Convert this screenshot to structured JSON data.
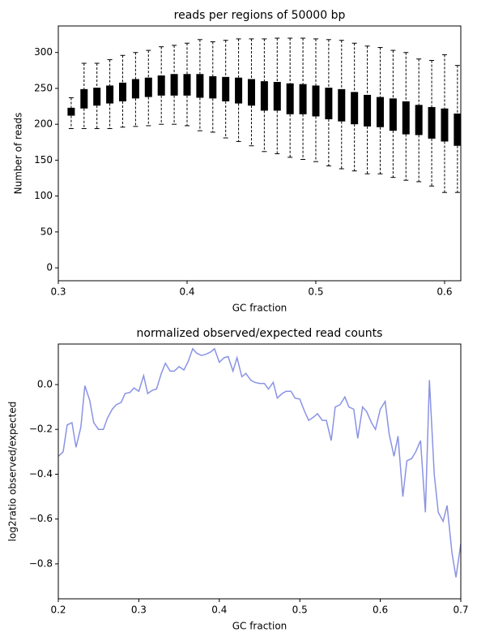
{
  "chart_data": [
    {
      "type": "box",
      "title": "reads per regions of 50000 bp",
      "xlabel": "GC fraction",
      "ylabel": "Number of reads",
      "x": [
        0.31,
        0.32,
        0.33,
        0.34,
        0.35,
        0.36,
        0.37,
        0.38,
        0.39,
        0.4,
        0.41,
        0.42,
        0.43,
        0.44,
        0.45,
        0.46,
        0.47,
        0.48,
        0.49,
        0.5,
        0.51,
        0.52,
        0.53,
        0.54,
        0.55,
        0.56,
        0.57,
        0.58,
        0.59,
        0.6,
        0.61
      ],
      "whisker_high": [
        237,
        285,
        285,
        290,
        296,
        300,
        303,
        308,
        310,
        313,
        318,
        315,
        317,
        319,
        319,
        319,
        320,
        320,
        320,
        319,
        318,
        317,
        313,
        309,
        307,
        303,
        300,
        291,
        289,
        297,
        282
      ],
      "q3": [
        223,
        249,
        251,
        254,
        258,
        263,
        265,
        268,
        270,
        270,
        270,
        267,
        266,
        265,
        263,
        260,
        259,
        257,
        256,
        254,
        251,
        249,
        245,
        241,
        238,
        236,
        232,
        227,
        224,
        222,
        215
      ],
      "q1": [
        212,
        222,
        226,
        229,
        232,
        236,
        238,
        240,
        240,
        240,
        237,
        236,
        232,
        229,
        226,
        219,
        219,
        214,
        214,
        211,
        207,
        204,
        200,
        197,
        196,
        191,
        186,
        185,
        180,
        176,
        170
      ],
      "whisker_low": [
        194,
        194,
        194,
        194,
        196,
        197,
        198,
        200,
        200,
        198,
        191,
        189,
        181,
        176,
        170,
        162,
        159,
        154,
        151,
        148,
        142,
        138,
        135,
        131,
        131,
        126,
        122,
        120,
        114,
        105,
        105
      ],
      "color": "#000000",
      "xlim": [
        0.3,
        0.6126
      ],
      "xticks": [
        0.3,
        0.4,
        0.5,
        0.6
      ],
      "ylim": [
        -18,
        337
      ],
      "yticks": [
        0,
        50,
        100,
        150,
        200,
        250,
        300
      ]
    },
    {
      "type": "line",
      "title": "normalized observed/expected read counts",
      "xlabel": "GC fraction",
      "ylabel": "log2ratio observed/expected",
      "x": [
        0.2,
        0.206,
        0.211,
        0.217,
        0.222,
        0.228,
        0.233,
        0.239,
        0.244,
        0.25,
        0.256,
        0.261,
        0.267,
        0.272,
        0.278,
        0.283,
        0.289,
        0.294,
        0.3,
        0.306,
        0.311,
        0.317,
        0.322,
        0.328,
        0.333,
        0.339,
        0.344,
        0.35,
        0.356,
        0.361,
        0.367,
        0.372,
        0.378,
        0.383,
        0.389,
        0.394,
        0.4,
        0.406,
        0.411,
        0.417,
        0.422,
        0.428,
        0.433,
        0.439,
        0.444,
        0.45,
        0.456,
        0.461,
        0.467,
        0.472,
        0.478,
        0.483,
        0.489,
        0.494,
        0.5,
        0.506,
        0.511,
        0.517,
        0.522,
        0.528,
        0.533,
        0.539,
        0.544,
        0.55,
        0.556,
        0.561,
        0.567,
        0.572,
        0.578,
        0.583,
        0.589,
        0.594,
        0.6,
        0.606,
        0.611,
        0.617,
        0.622,
        0.628,
        0.633,
        0.639,
        0.644,
        0.65,
        0.656,
        0.661,
        0.667,
        0.672,
        0.678,
        0.683,
        0.689,
        0.694,
        0.7
      ],
      "values": [
        -0.32,
        -0.3,
        -0.18,
        -0.17,
        -0.28,
        -0.19,
        -0.005,
        -0.07,
        -0.17,
        -0.2,
        -0.2,
        -0.15,
        -0.11,
        -0.09,
        -0.08,
        -0.04,
        -0.035,
        -0.015,
        -0.03,
        0.04,
        -0.04,
        -0.025,
        -0.02,
        0.05,
        0.095,
        0.06,
        0.06,
        0.08,
        0.065,
        0.1,
        0.16,
        0.14,
        0.13,
        0.135,
        0.145,
        0.16,
        0.1,
        0.12,
        0.125,
        0.06,
        0.12,
        0.035,
        0.05,
        0.02,
        0.01,
        0.005,
        0.005,
        -0.02,
        0.01,
        -0.06,
        -0.04,
        -0.03,
        -0.03,
        -0.06,
        -0.065,
        -0.12,
        -0.16,
        -0.145,
        -0.13,
        -0.16,
        -0.16,
        -0.25,
        -0.1,
        -0.09,
        -0.055,
        -0.1,
        -0.11,
        -0.24,
        -0.1,
        -0.12,
        -0.17,
        -0.2,
        -0.11,
        -0.075,
        -0.22,
        -0.32,
        -0.23,
        -0.5,
        -0.34,
        -0.33,
        -0.3,
        -0.25,
        -0.57,
        0.02,
        -0.4,
        -0.57,
        -0.61,
        -0.54,
        -0.75,
        -0.86,
        -0.71
      ],
      "color": "#8a93e3",
      "xlim": [
        0.2,
        0.7
      ],
      "xticks": [
        0.2,
        0.3,
        0.4,
        0.5,
        0.6,
        0.7
      ],
      "ylim": [
        -0.956,
        0.181
      ],
      "yticks": [
        {
          "value": -0.8,
          "label": "−0.8"
        },
        {
          "value": -0.6,
          "label": "−0.6"
        },
        {
          "value": -0.4,
          "label": "−0.4"
        },
        {
          "value": -0.2,
          "label": "−0.2"
        },
        {
          "value": 0,
          "label": "0.0"
        }
      ]
    }
  ]
}
